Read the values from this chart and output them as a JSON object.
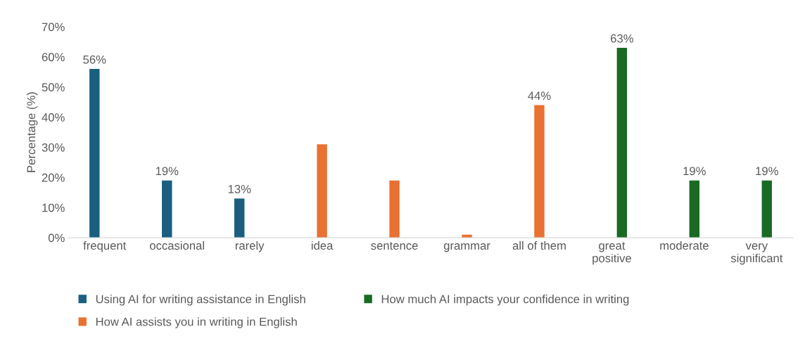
{
  "chart_data": {
    "type": "bar",
    "ylabel": "Percentage (%)",
    "categories": [
      "frequent",
      "occasional",
      "rarely",
      "idea",
      "sentence",
      "grammar",
      "all of them",
      "great positive",
      "moderate",
      "very significant"
    ],
    "series": [
      {
        "name": "Using AI for writing assistance in English",
        "color": "#1a5f80",
        "values": [
          56,
          19,
          13,
          null,
          null,
          null,
          null,
          null,
          null,
          null
        ],
        "value_labels": [
          "56%",
          "19%",
          "13%",
          null,
          null,
          null,
          null,
          null,
          null,
          null
        ]
      },
      {
        "name": "How AI assists you in writing in English",
        "color": "#e97132",
        "values": [
          null,
          null,
          null,
          31,
          19,
          1,
          44,
          null,
          null,
          null
        ],
        "value_labels": [
          null,
          null,
          null,
          null,
          null,
          null,
          "44%",
          null,
          null,
          null
        ]
      },
      {
        "name": "How much AI impacts your confidence in writing",
        "color": "#196b24",
        "values": [
          null,
          null,
          null,
          null,
          null,
          null,
          null,
          63,
          19,
          19
        ],
        "value_labels": [
          null,
          null,
          null,
          null,
          null,
          null,
          null,
          "63%",
          "19%",
          "19%"
        ]
      }
    ],
    "ylim": [
      0,
      70
    ],
    "yticks": [
      {
        "value": 0,
        "label": "0%"
      },
      {
        "value": 10,
        "label": "10%"
      },
      {
        "value": 20,
        "label": "20%"
      },
      {
        "value": 30,
        "label": "30%"
      },
      {
        "value": 40,
        "label": "40%"
      },
      {
        "value": 50,
        "label": "50%"
      },
      {
        "value": 60,
        "label": "60%"
      },
      {
        "value": 70,
        "label": "70%"
      }
    ],
    "grid": false,
    "legend": "bottom"
  }
}
